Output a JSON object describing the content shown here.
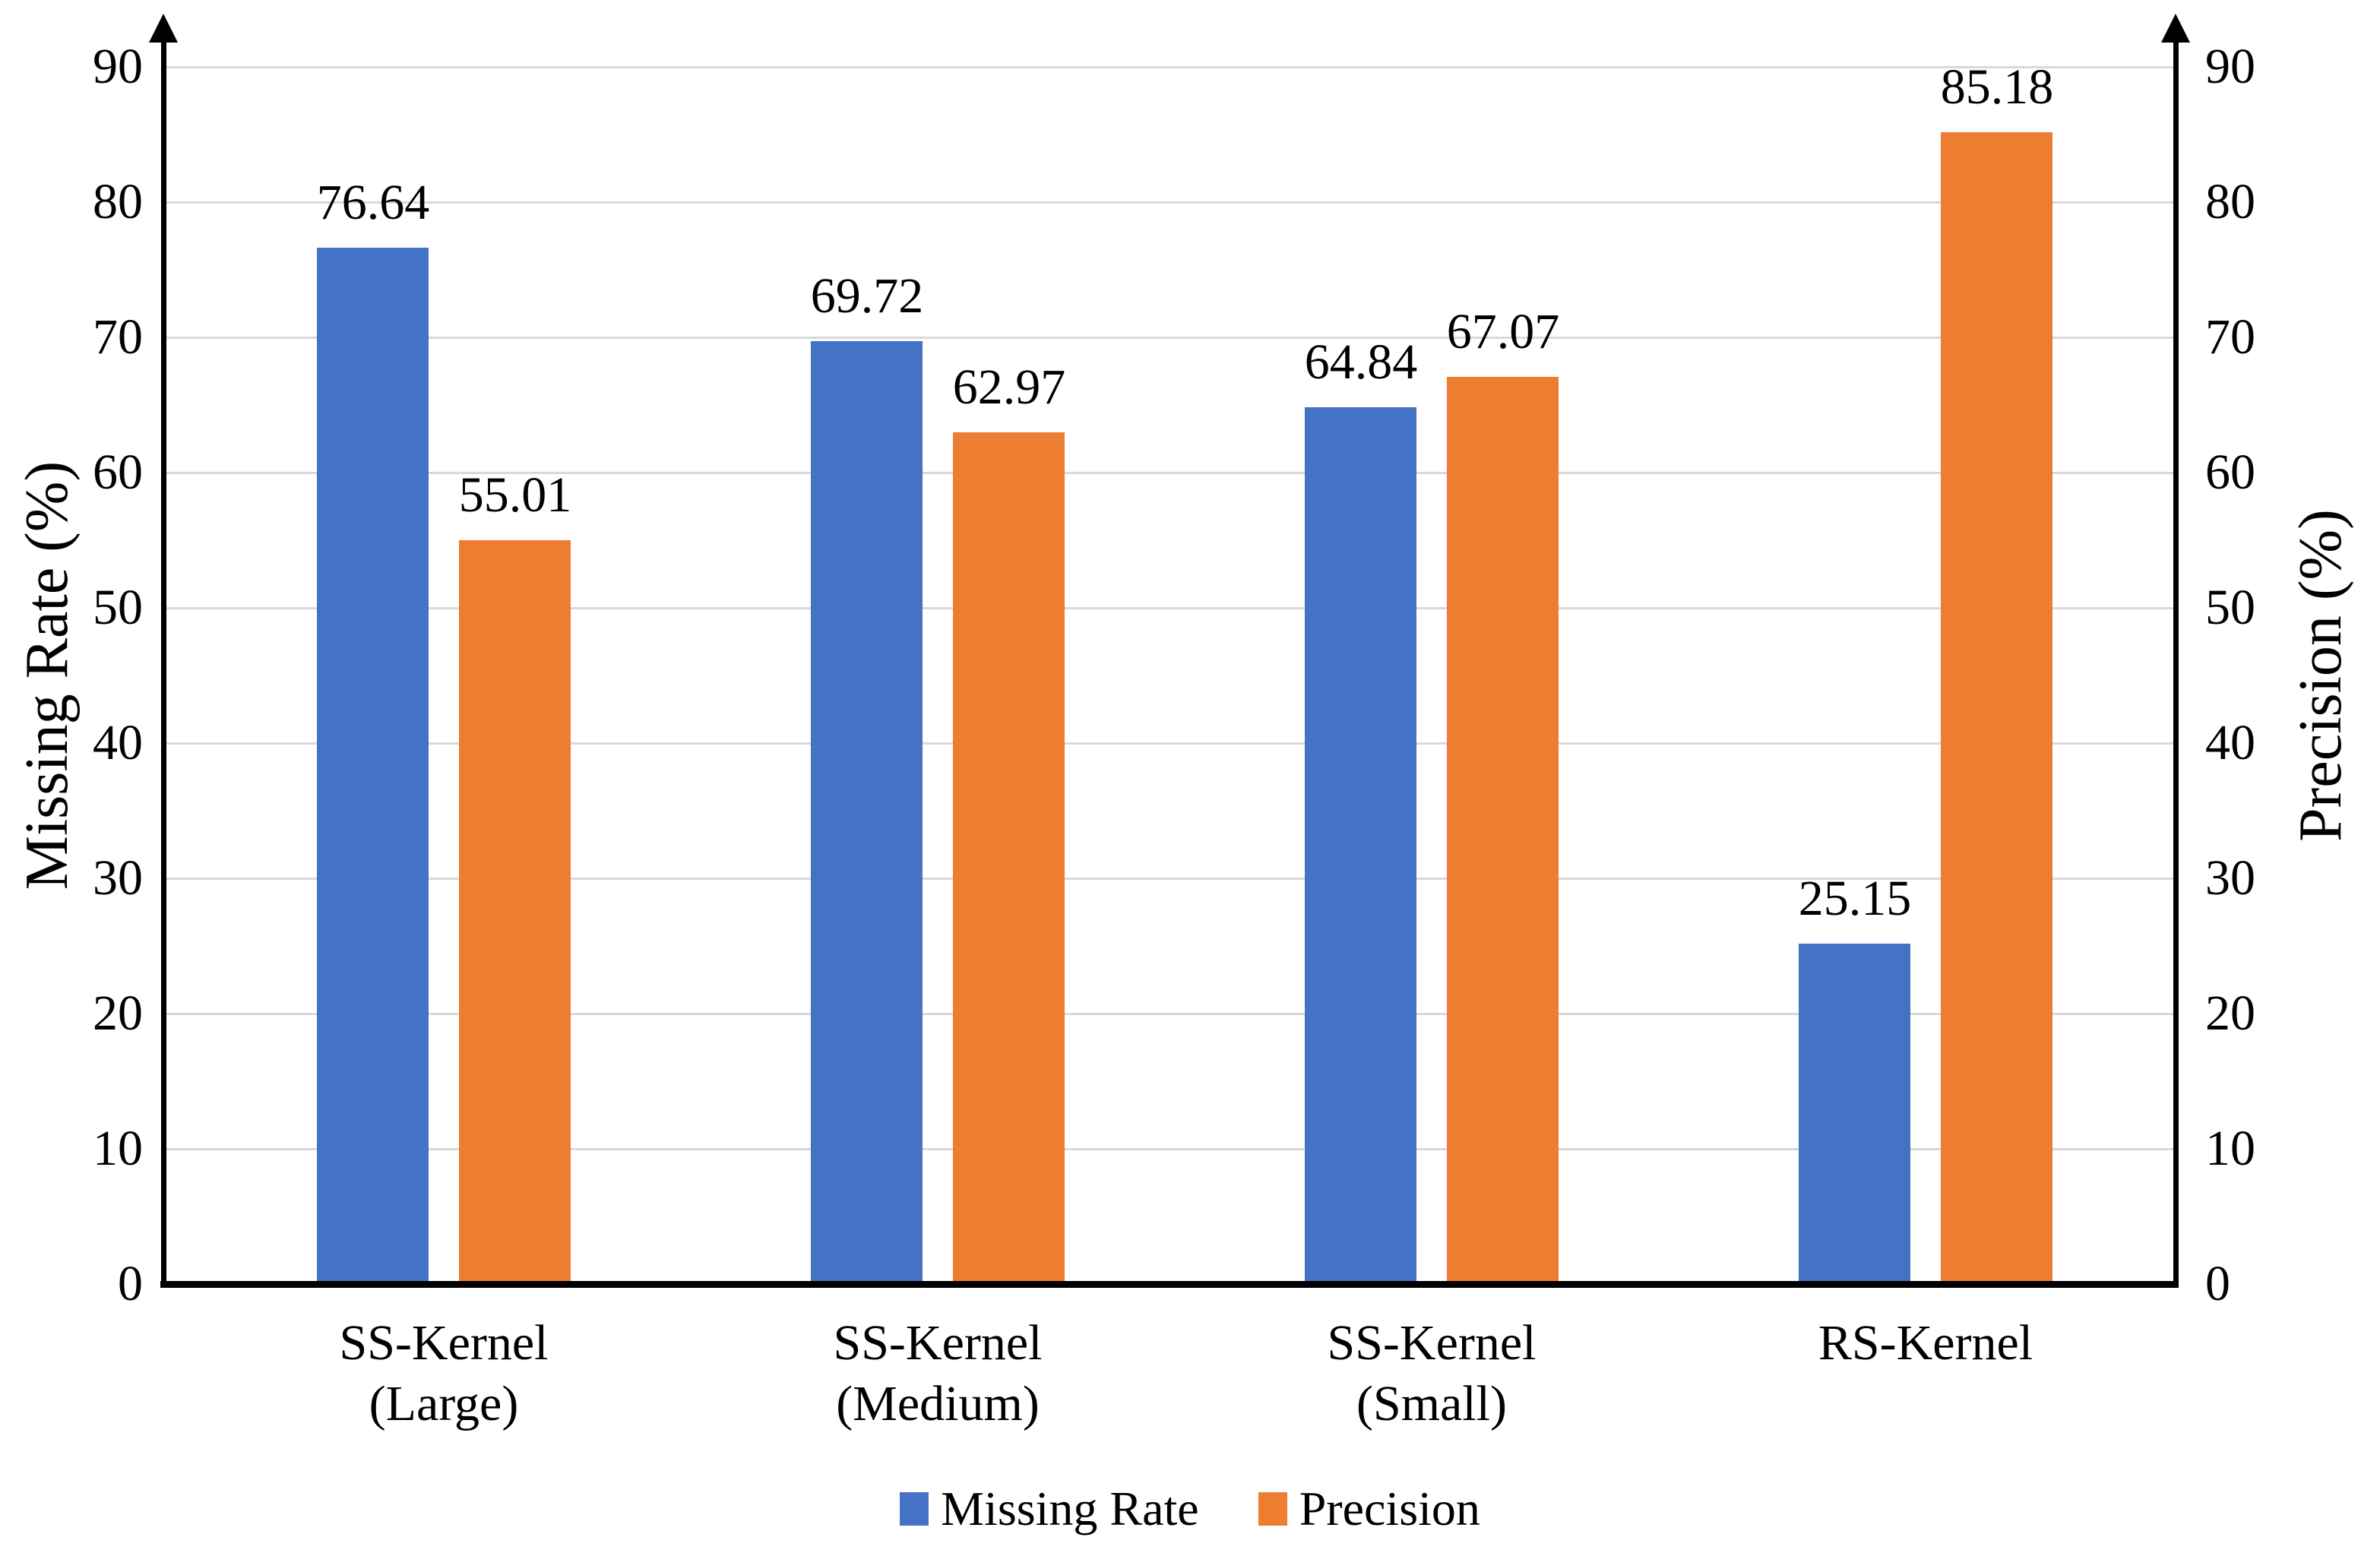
{
  "chart_data": {
    "type": "bar",
    "title": "",
    "categories": [
      "SS-Kernel\n(Large)",
      "SS-Kernel\n(Medium)",
      "SS-Kernel\n(Small)",
      "RS-Kernel"
    ],
    "series": [
      {
        "name": "Missing Rate",
        "axis": "left",
        "color": "#4472C4",
        "values": [
          76.64,
          69.72,
          64.84,
          25.15
        ]
      },
      {
        "name": "Precision",
        "axis": "right",
        "color": "#ED7D31",
        "values": [
          55.01,
          62.97,
          67.07,
          85.18
        ]
      }
    ],
    "left_axis": {
      "label": "Missing Rate (%)",
      "min": 0,
      "max": 90,
      "tick_step": 10,
      "ticks": [
        0,
        10,
        20,
        30,
        40,
        50,
        60,
        70,
        80,
        90
      ],
      "arrow": true
    },
    "right_axis": {
      "label": "Precision (%)",
      "min": 0,
      "max": 90,
      "tick_step": 10,
      "ticks": [
        0,
        10,
        20,
        30,
        40,
        50,
        60,
        70,
        80,
        90
      ],
      "arrow": true
    },
    "grid": true,
    "data_labels_visible": true,
    "legend": {
      "position": "bottom",
      "entries": [
        "Missing Rate",
        "Precision"
      ]
    },
    "colors": {
      "axis": "#000000",
      "gridline": "#D9D9D9",
      "background": "#FFFFFF",
      "text": "#000000"
    }
  }
}
